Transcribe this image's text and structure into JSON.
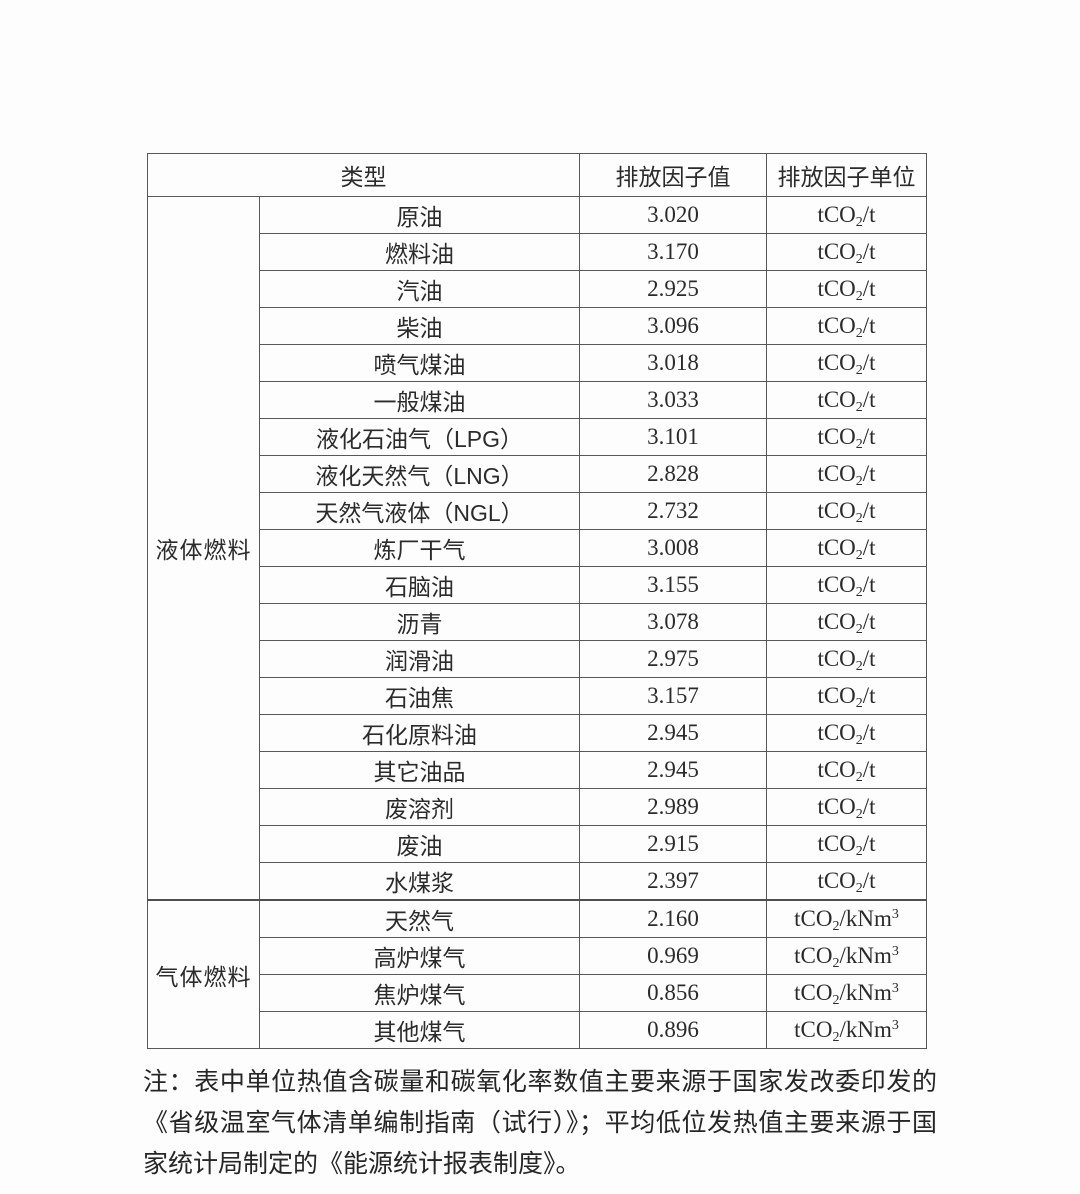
{
  "table": {
    "header": {
      "type_label": "类型",
      "value_label": "排放因子值",
      "unit_label": "排放因子单位"
    },
    "sections": [
      {
        "group": "液体燃料",
        "rows": [
          {
            "name": "原油",
            "value": "3.020",
            "unit": "tCO~2~/t"
          },
          {
            "name": "燃料油",
            "value": "3.170",
            "unit": "tCO~2~/t"
          },
          {
            "name": "汽油",
            "value": "2.925",
            "unit": "tCO~2~/t"
          },
          {
            "name": "柴油",
            "value": "3.096",
            "unit": "tCO~2~/t"
          },
          {
            "name": "喷气煤油",
            "value": "3.018",
            "unit": "tCO~2~/t"
          },
          {
            "name": "一般煤油",
            "value": "3.033",
            "unit": "tCO~2~/t"
          },
          {
            "name": "液化石油气（LPG）",
            "value": "3.101",
            "unit": "tCO~2~/t"
          },
          {
            "name": "液化天然气（LNG）",
            "value": "2.828",
            "unit": "tCO~2~/t"
          },
          {
            "name": "天然气液体（NGL）",
            "value": "2.732",
            "unit": "tCO~2~/t"
          },
          {
            "name": "炼厂干气",
            "value": "3.008",
            "unit": "tCO~2~/t"
          },
          {
            "name": "石脑油",
            "value": "3.155",
            "unit": "tCO~2~/t"
          },
          {
            "name": "沥青",
            "value": "3.078",
            "unit": "tCO~2~/t"
          },
          {
            "name": "润滑油",
            "value": "2.975",
            "unit": "tCO~2~/t"
          },
          {
            "name": "石油焦",
            "value": "3.157",
            "unit": "tCO~2~/t"
          },
          {
            "name": "石化原料油",
            "value": "2.945",
            "unit": "tCO~2~/t"
          },
          {
            "name": "其它油品",
            "value": "2.945",
            "unit": "tCO~2~/t"
          },
          {
            "name": "废溶剂",
            "value": "2.989",
            "unit": "tCO~2~/t"
          },
          {
            "name": "废油",
            "value": "2.915",
            "unit": "tCO~2~/t"
          },
          {
            "name": "水煤浆",
            "value": "2.397",
            "unit": "tCO~2~/t"
          }
        ]
      },
      {
        "group": "气体燃料",
        "rows": [
          {
            "name": "天然气",
            "value": "2.160",
            "unit": "tCO~2~/kNm^3^"
          },
          {
            "name": "高炉煤气",
            "value": "0.969",
            "unit": "tCO~2~/kNm^3^"
          },
          {
            "name": "焦炉煤气",
            "value": "0.856",
            "unit": "tCO~2~/kNm^3^"
          },
          {
            "name": "其他煤气",
            "value": "0.896",
            "unit": "tCO~2~/kNm^3^"
          }
        ]
      }
    ]
  },
  "note": {
    "text": "注：表中单位热值含碳量和碳氧化率数值主要来源于国家发改委印发的《省级温室气体清单编制指南（试行）》；平均低位发热值主要来源于国家统计局制定的《能源统计报表制度》。"
  }
}
